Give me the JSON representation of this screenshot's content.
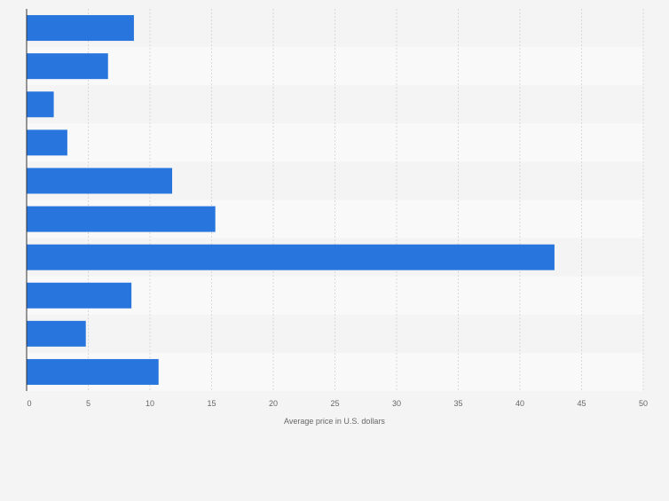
{
  "chart_data": {
    "type": "bar",
    "orientation": "horizontal",
    "categories": [
      "",
      "",
      "",
      "",
      "",
      "",
      "",
      "",
      "",
      ""
    ],
    "values": [
      8.7,
      6.6,
      2.2,
      3.3,
      11.8,
      15.3,
      42.8,
      8.5,
      4.8,
      10.7
    ],
    "title": "",
    "xlabel": "Average price in U.S. dollars",
    "ylabel": "",
    "xlim": [
      0,
      50
    ],
    "xticks": [
      0,
      5,
      10,
      15,
      20,
      25,
      30,
      35,
      40,
      45,
      50
    ],
    "grid": true,
    "legend": "none",
    "colors": {
      "bar": "#2876dd",
      "band_dark": "#f4f4f4",
      "band_light": "#f9f9f9",
      "grid": "#d9d9d9",
      "axis": "#333333",
      "tick_label": "#666666"
    }
  }
}
